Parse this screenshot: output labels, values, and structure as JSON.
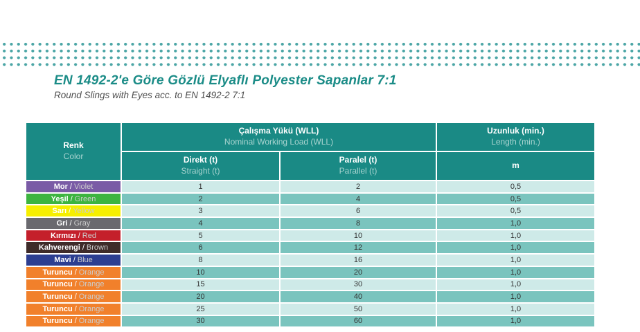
{
  "page": {
    "title": "EN 1492-2'e Göre Gözlü Elyaflı Polyester Sapanlar 7:1",
    "subtitle": "Round Slings with Eyes acc. to EN 1492-2 7:1"
  },
  "theme": {
    "teal": "#1A8A85",
    "teal-light-text": "#A9D4D0",
    "dot": "#4CA6A6",
    "title-color": "#1B8C87",
    "subtitle-color": "#4F4F4F",
    "row-light": "#CEEAE8",
    "row-medium": "#7AC4BE",
    "value-color": "#333333",
    "label-en": "#CCCCCC"
  },
  "table": {
    "separator": "/",
    "header": {
      "renk_tr": "Renk",
      "renk_en": "Color",
      "wll_tr": "Çalışma Yükü (WLL)",
      "wll_en": "Nominal Working Load (WLL)",
      "direct_tr": "Direkt (t)",
      "direct_en": "Straight (t)",
      "parallel_tr": "Paralel (t)",
      "parallel_en": "Parallel (t)",
      "length_tr": "Uzunluk (min.)",
      "length_en": "Length (min.)",
      "unit": "m"
    },
    "rows": [
      {
        "name_tr": "Mor",
        "name_en": "Violet",
        "color": "#7A5BA6",
        "direct": "1",
        "parallel": "2",
        "length": "0,5"
      },
      {
        "name_tr": "Yeşil",
        "name_en": "Green",
        "color": "#3DB440",
        "direct": "2",
        "parallel": "4",
        "length": "0,5"
      },
      {
        "name_tr": "Sarı",
        "name_en": "Yellow",
        "color": "#F7EF00",
        "direct": "3",
        "parallel": "6",
        "length": "0,5"
      },
      {
        "name_tr": "Gri",
        "name_en": "Gray",
        "color": "#6A696E",
        "direct": "4",
        "parallel": "8",
        "length": "1,0"
      },
      {
        "name_tr": "Kırmızı",
        "name_en": "Red",
        "color": "#C4202B",
        "direct": "5",
        "parallel": "10",
        "length": "1,0"
      },
      {
        "name_tr": "Kahverengi",
        "name_en": "Brown",
        "color": "#3E2B29",
        "direct": "6",
        "parallel": "12",
        "length": "1,0"
      },
      {
        "name_tr": "Mavi",
        "name_en": "Blue",
        "color": "#2C3E91",
        "direct": "8",
        "parallel": "16",
        "length": "1,0"
      },
      {
        "name_tr": "Turuncu",
        "name_en": "Orange",
        "color": "#F1802B",
        "direct": "10",
        "parallel": "20",
        "length": "1,0"
      },
      {
        "name_tr": "Turuncu",
        "name_en": "Orange",
        "color": "#F1802B",
        "direct": "15",
        "parallel": "30",
        "length": "1,0"
      },
      {
        "name_tr": "Turuncu",
        "name_en": "Orange",
        "color": "#F1802B",
        "direct": "20",
        "parallel": "40",
        "length": "1,0"
      },
      {
        "name_tr": "Turuncu",
        "name_en": "Orange",
        "color": "#F1802B",
        "direct": "25",
        "parallel": "50",
        "length": "1,0"
      },
      {
        "name_tr": "Turuncu",
        "name_en": "Orange",
        "color": "#F1802B",
        "direct": "30",
        "parallel": "60",
        "length": "1,0"
      }
    ]
  }
}
